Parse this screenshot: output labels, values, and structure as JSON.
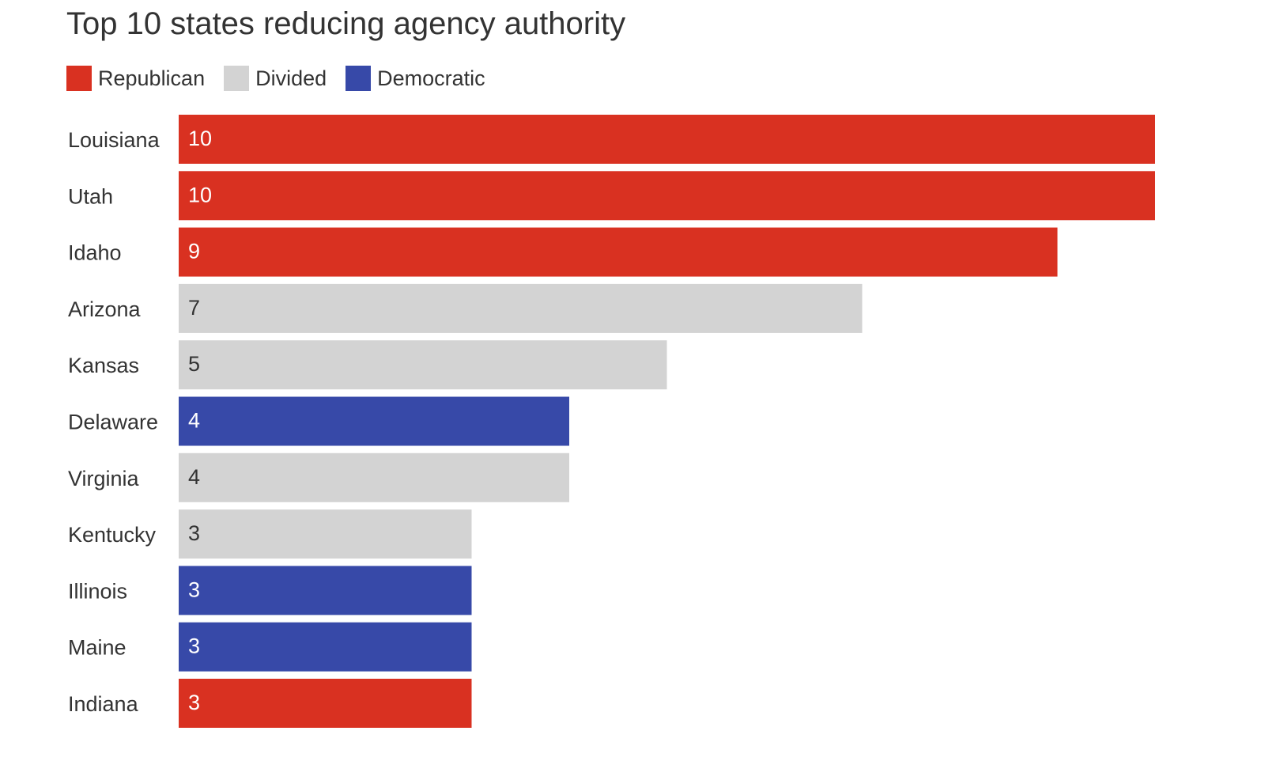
{
  "chart_data": {
    "type": "bar",
    "orientation": "horizontal",
    "title": "Top 10 states reducing agency authority",
    "xlabel": "",
    "ylabel": "",
    "xlim": [
      0,
      10
    ],
    "grid": false,
    "legend_placement": "top-left",
    "legend": [
      {
        "key": "republican",
        "label": "Republican",
        "color": "#d93121"
      },
      {
        "key": "divided",
        "label": "Divided",
        "color": "#d3d3d3"
      },
      {
        "key": "democratic",
        "label": "Democratic",
        "color": "#3749a8"
      }
    ],
    "categories": [
      "Louisiana",
      "Utah",
      "Idaho",
      "Arizona",
      "Kansas",
      "Delaware",
      "Virginia",
      "Kentucky",
      "Illinois",
      "Maine",
      "Indiana"
    ],
    "values": [
      10,
      10,
      9,
      7,
      5,
      4,
      4,
      3,
      3,
      3,
      3
    ],
    "groups": [
      "republican",
      "republican",
      "republican",
      "divided",
      "divided",
      "democratic",
      "divided",
      "divided",
      "democratic",
      "democratic",
      "republican"
    ],
    "value_label_colors": {
      "republican": "#ffffff",
      "divided": "#333333",
      "democratic": "#ffffff"
    }
  }
}
